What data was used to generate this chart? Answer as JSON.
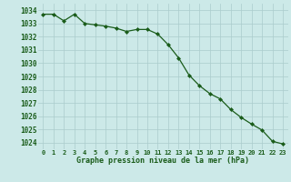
{
  "x": [
    0,
    1,
    2,
    3,
    4,
    5,
    6,
    7,
    8,
    9,
    10,
    11,
    12,
    13,
    14,
    15,
    16,
    17,
    18,
    19,
    20,
    21,
    22,
    23
  ],
  "y": [
    1033.7,
    1033.7,
    1033.2,
    1033.7,
    1033.0,
    1032.9,
    1032.8,
    1032.65,
    1032.4,
    1032.55,
    1032.55,
    1032.2,
    1031.4,
    1030.4,
    1029.1,
    1028.3,
    1027.7,
    1027.3,
    1026.5,
    1025.9,
    1025.4,
    1024.95,
    1024.1,
    1023.9
  ],
  "line_color": "#1a5c1a",
  "marker_color": "#1a5c1a",
  "bg_color": "#cce9e8",
  "grid_color": "#aacccc",
  "xlabel": "Graphe pression niveau de la mer (hPa)",
  "xlabel_color": "#1a5c1a",
  "tick_color": "#1a5c1a",
  "ylim_min": 1023.5,
  "ylim_max": 1034.5,
  "yticks": [
    1024,
    1025,
    1026,
    1027,
    1028,
    1029,
    1030,
    1031,
    1032,
    1033,
    1034
  ],
  "xticks": [
    0,
    1,
    2,
    3,
    4,
    5,
    6,
    7,
    8,
    9,
    10,
    11,
    12,
    13,
    14,
    15,
    16,
    17,
    18,
    19,
    20,
    21,
    22,
    23
  ],
  "fig_width": 3.2,
  "fig_height": 2.0,
  "dpi": 100
}
